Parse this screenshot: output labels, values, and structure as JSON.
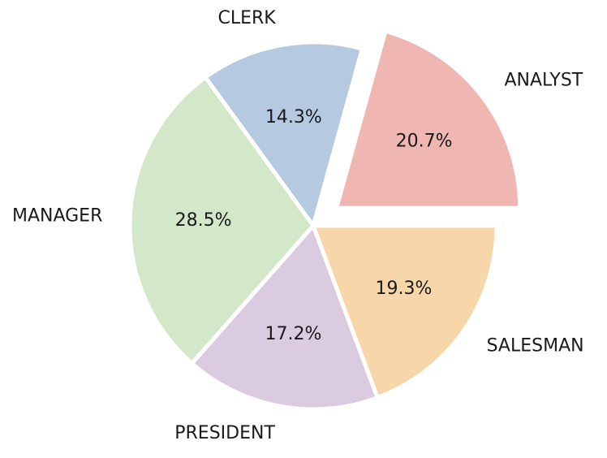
{
  "chart_data": {
    "type": "pie",
    "categories": [
      "ANALYST",
      "CLERK",
      "MANAGER",
      "PRESIDENT",
      "SALESMAN"
    ],
    "values": [
      20.7,
      14.3,
      28.5,
      17.2,
      19.3
    ],
    "value_labels": [
      "20.7%",
      "14.3%",
      "28.5%",
      "17.2%",
      "19.3%"
    ],
    "exploded": [
      "ANALYST"
    ],
    "start_angle_deg": 0,
    "direction": "counterclockwise",
    "colors": [
      "#f0b6b1",
      "#b5c9e0",
      "#d2e8c8",
      "#dbcbe1",
      "#f7d7a9"
    ],
    "edge_color": "#ffffff",
    "legend": "none",
    "title": ""
  }
}
